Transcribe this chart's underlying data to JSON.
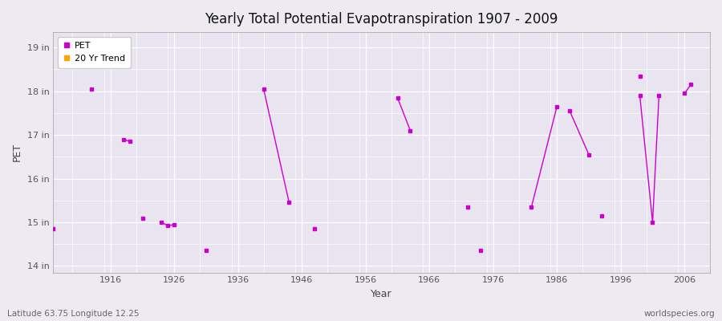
{
  "title": "Yearly Total Potential Evapotranspiration 1907 - 2009",
  "xlabel": "Year",
  "ylabel": "PET",
  "background_color": "#eeeaf2",
  "plot_bg_color": "#e8e4f0",
  "grid_color": "#ffffff",
  "pet_color": "#cc00cc",
  "trend_color": "#ffa500",
  "xlim": [
    1907,
    2010
  ],
  "ylim": [
    13.85,
    19.35
  ],
  "yticks": [
    14,
    15,
    16,
    17,
    18,
    19
  ],
  "ytick_labels": [
    "14 in",
    "15 in",
    "16 in",
    "17 in",
    "18 in",
    "19 in"
  ],
  "xticks": [
    1916,
    1926,
    1936,
    1946,
    1956,
    1966,
    1976,
    1986,
    1996,
    2006
  ],
  "subtitle_left": "Latitude 63.75 Longitude 12.25",
  "subtitle_right": "worldspecies.org",
  "groups": [
    {
      "x": [
        1907
      ],
      "y": [
        14.85
      ]
    },
    {
      "x": [
        1913
      ],
      "y": [
        18.05
      ]
    },
    {
      "x": [
        1918,
        1919
      ],
      "y": [
        16.9,
        16.85
      ]
    },
    {
      "x": [
        1921
      ],
      "y": [
        15.1
      ]
    },
    {
      "x": [
        1924,
        1925,
        1926
      ],
      "y": [
        15.0,
        14.92,
        14.95
      ]
    },
    {
      "x": [
        1931
      ],
      "y": [
        14.35
      ]
    },
    {
      "x": [
        1940,
        1944
      ],
      "y": [
        18.05,
        15.45
      ]
    },
    {
      "x": [
        1948
      ],
      "y": [
        14.85
      ]
    },
    {
      "x": [
        1961,
        1963
      ],
      "y": [
        17.85,
        17.1
      ]
    },
    {
      "x": [
        1972
      ],
      "y": [
        15.35
      ]
    },
    {
      "x": [
        1974
      ],
      "y": [
        14.35
      ]
    },
    {
      "x": [
        1982,
        1986
      ],
      "y": [
        15.35,
        17.65
      ]
    },
    {
      "x": [
        1988,
        1991
      ],
      "y": [
        17.55,
        16.55
      ]
    },
    {
      "x": [
        1993
      ],
      "y": [
        15.15
      ]
    },
    {
      "x": [
        1999
      ],
      "y": [
        18.35
      ]
    },
    {
      "x": [
        1999,
        2001,
        2002
      ],
      "y": [
        17.9,
        15.0,
        17.9
      ]
    },
    {
      "x": [
        2006,
        2007
      ],
      "y": [
        17.95,
        18.15
      ]
    }
  ]
}
